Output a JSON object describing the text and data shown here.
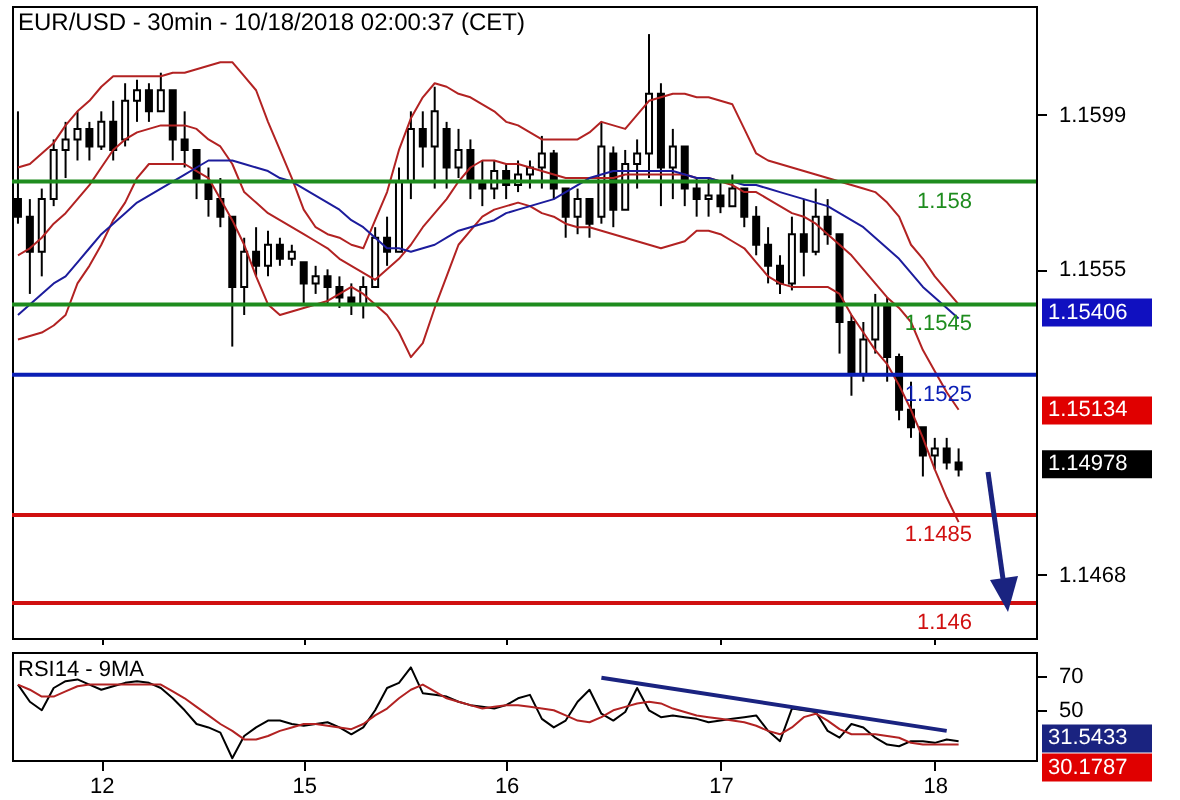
{
  "chart_data": [
    {
      "type": "candlestick",
      "title": "EUR/USD - 30min - 10/18/2018 02:00:37 (CET)",
      "categories": [
        null,
        null,
        null,
        null,
        null,
        null,
        null,
        "12",
        null,
        null,
        null,
        null,
        null,
        null,
        null,
        null,
        null,
        null,
        null,
        null,
        null,
        null,
        null,
        null,
        "15",
        null,
        null,
        null,
        null,
        null,
        null,
        null,
        null,
        null,
        null,
        null,
        null,
        null,
        null,
        null,
        null,
        "16",
        null,
        null,
        null,
        null,
        null,
        null,
        null,
        null,
        null,
        null,
        null,
        null,
        null,
        null,
        null,
        null,
        null,
        "17",
        null,
        null,
        null,
        null,
        null,
        null,
        null,
        null,
        null,
        null,
        null,
        null,
        null,
        null,
        null,
        null,
        null,
        "18",
        null,
        null,
        null,
        null,
        null,
        null,
        null,
        null
      ],
      "ohlc": [
        [
          1.1575,
          1.16,
          1.1568,
          1.157
        ],
        [
          1.157,
          1.1575,
          1.1548,
          1.156
        ],
        [
          1.156,
          1.1578,
          1.1553,
          1.1575
        ],
        [
          1.1575,
          1.1592,
          1.1573,
          1.1589
        ],
        [
          1.1589,
          1.1597,
          1.1581,
          1.1592
        ],
        [
          1.1592,
          1.16,
          1.1586,
          1.1595
        ],
        [
          1.1595,
          1.1597,
          1.1586,
          1.159
        ],
        [
          1.159,
          1.16,
          1.1589,
          1.1597
        ],
        [
          1.1597,
          1.1603,
          1.1586,
          1.1589
        ],
        [
          1.1592,
          1.1608,
          1.159,
          1.1603
        ],
        [
          1.1603,
          1.1609,
          1.1597,
          1.1606
        ],
        [
          1.1606,
          1.1608,
          1.1597,
          1.16
        ],
        [
          1.16,
          1.1611,
          1.16,
          1.1606
        ],
        [
          1.1606,
          1.1606,
          1.1586,
          1.1592
        ],
        [
          1.1592,
          1.16,
          1.1584,
          1.1589
        ],
        [
          1.1589,
          1.1589,
          1.1575,
          1.158
        ],
        [
          1.158,
          1.1584,
          1.157,
          1.1575
        ],
        [
          1.1575,
          1.1581,
          1.1567,
          1.157
        ],
        [
          1.157,
          1.157,
          1.1533,
          1.155
        ],
        [
          1.155,
          1.1564,
          1.1542,
          1.156
        ],
        [
          1.156,
          1.1567,
          1.1553,
          1.1556
        ],
        [
          1.1556,
          1.1566,
          1.1553,
          1.1562
        ],
        [
          1.1562,
          1.1564,
          1.1556,
          1.1558
        ],
        [
          1.1558,
          1.1562,
          1.1556,
          1.156
        ],
        [
          1.1557,
          1.1557,
          1.1545,
          1.1551
        ],
        [
          1.1551,
          1.1556,
          1.1548,
          1.1553
        ],
        [
          1.1553,
          1.1555,
          1.1545,
          1.155
        ],
        [
          1.155,
          1.1553,
          1.1544,
          1.1547
        ],
        [
          1.1547,
          1.1551,
          1.1542,
          1.1545
        ],
        [
          1.1545,
          1.1553,
          1.1541,
          1.155
        ],
        [
          1.155,
          1.1567,
          1.155,
          1.1564
        ],
        [
          1.1564,
          1.157,
          1.1556,
          1.156
        ],
        [
          1.156,
          1.1584,
          1.156,
          1.158
        ],
        [
          1.158,
          1.16,
          1.1575,
          1.1595
        ],
        [
          1.1595,
          1.16,
          1.1584,
          1.159
        ],
        [
          1.159,
          1.1607,
          1.1578,
          1.16
        ],
        [
          1.1595,
          1.1597,
          1.1578,
          1.1584
        ],
        [
          1.1584,
          1.1595,
          1.1581,
          1.1589
        ],
        [
          1.1589,
          1.1592,
          1.1575,
          1.158
        ],
        [
          1.158,
          1.1586,
          1.1573,
          1.1578
        ],
        [
          1.1578,
          1.1586,
          1.1575,
          1.1583
        ],
        [
          1.1583,
          1.1585,
          1.1575,
          1.1579
        ],
        [
          1.1579,
          1.1586,
          1.1577,
          1.1582
        ],
        [
          1.1582,
          1.1586,
          1.1578,
          1.1584
        ],
        [
          1.1584,
          1.1593,
          1.1578,
          1.1588
        ],
        [
          1.1588,
          1.1589,
          1.1575,
          1.1578
        ],
        [
          1.1578,
          1.1578,
          1.1564,
          1.157
        ],
        [
          1.157,
          1.1578,
          1.1565,
          1.1575
        ],
        [
          1.1575,
          1.1575,
          1.1564,
          1.1568
        ],
        [
          1.157,
          1.1597,
          1.1568,
          1.159
        ],
        [
          1.1588,
          1.159,
          1.1567,
          1.1572
        ],
        [
          1.1572,
          1.1589,
          1.1572,
          1.1585
        ],
        [
          1.1585,
          1.1592,
          1.1578,
          1.1588
        ],
        [
          1.1588,
          1.1622,
          1.1581,
          1.1605
        ],
        [
          1.1605,
          1.1608,
          1.1573,
          1.1584
        ],
        [
          1.1584,
          1.1595,
          1.1575,
          1.159
        ],
        [
          1.159,
          1.159,
          1.1573,
          1.1578
        ],
        [
          1.1578,
          1.1581,
          1.157,
          1.1575
        ],
        [
          1.1575,
          1.1581,
          1.157,
          1.1576
        ],
        [
          1.1576,
          1.158,
          1.1571,
          1.1573
        ],
        [
          1.1573,
          1.1582,
          1.1573,
          1.1578
        ],
        [
          1.1578,
          1.1578,
          1.1567,
          1.157
        ],
        [
          1.157,
          1.1573,
          1.1559,
          1.1562
        ],
        [
          1.1562,
          1.1567,
          1.1551,
          1.1556
        ],
        [
          1.1556,
          1.1559,
          1.1548,
          1.1551
        ],
        [
          1.1551,
          1.157,
          1.1549,
          1.1565
        ],
        [
          1.1565,
          1.1575,
          1.1553,
          1.156
        ],
        [
          1.156,
          1.1578,
          1.1559,
          1.157
        ],
        [
          1.157,
          1.1575,
          1.1562,
          1.1565
        ],
        [
          1.1565,
          1.1565,
          1.1531,
          1.154
        ],
        [
          1.154,
          1.1542,
          1.1519,
          1.1525
        ],
        [
          1.1525,
          1.154,
          1.1523,
          1.1535
        ],
        [
          1.1535,
          1.1548,
          1.1531,
          1.1545
        ],
        [
          1.1545,
          1.1547,
          1.1523,
          1.153
        ],
        [
          1.153,
          1.1531,
          1.1512,
          1.1515
        ],
        [
          1.1515,
          1.1523,
          1.1507,
          1.151
        ],
        [
          1.151,
          1.151,
          1.1496,
          1.1502
        ],
        [
          1.1502,
          1.1507,
          1.1498,
          1.1504
        ],
        [
          1.1504,
          1.1507,
          1.1498,
          1.15
        ],
        [
          1.15,
          1.1504,
          1.1496,
          1.1498
        ],
        null,
        null,
        null,
        null,
        null,
        null
      ],
      "series": [
        {
          "type": "line",
          "color": "#b22222",
          "values": [
            1.1584,
            1.1585,
            1.1588,
            1.1591,
            1.1596,
            1.16,
            1.1603,
            1.1607,
            1.161,
            1.161,
            1.161,
            1.161,
            1.161,
            1.1611,
            1.1611,
            1.1612,
            1.1613,
            1.1614,
            1.1614,
            1.161,
            1.1606,
            1.1597,
            1.1589,
            1.1581,
            1.1572,
            1.1567,
            1.1565,
            1.1564,
            1.1562,
            1.1561,
            1.1569,
            1.1577,
            1.1589,
            1.1598,
            1.1604,
            1.1608,
            1.1607,
            1.1605,
            1.1604,
            1.1602,
            1.16,
            1.1597,
            1.1596,
            1.1594,
            1.1592,
            1.1592,
            1.1592,
            1.1592,
            1.1594,
            1.1597,
            1.1596,
            1.1595,
            1.1599,
            1.1603,
            1.1604,
            1.1605,
            1.1605,
            1.1604,
            1.1604,
            1.1603,
            1.1602,
            1.1595,
            1.1588,
            1.1586,
            1.1585,
            1.1584,
            1.1583,
            1.1582,
            1.1581,
            1.158,
            1.1579,
            1.1578,
            1.1577,
            1.1574,
            1.157,
            1.1562,
            1.1558,
            1.1553,
            1.1549,
            1.1545,
            null,
            null,
            null,
            null,
            null,
            null
          ]
        },
        {
          "type": "line",
          "color": "#b22222",
          "values": [
            1.1559,
            1.1561,
            1.1564,
            1.1568,
            1.1571,
            1.1575,
            1.1579,
            1.1584,
            1.1589,
            1.1592,
            1.1594,
            1.1595,
            1.1596,
            1.1596,
            1.1596,
            1.1595,
            1.1592,
            1.159,
            1.1585,
            1.1577,
            1.1574,
            1.1571,
            1.1569,
            1.1567,
            1.1565,
            1.1563,
            1.1561,
            1.1558,
            1.1556,
            1.1554,
            1.1552,
            1.1555,
            1.1558,
            1.1562,
            1.1567,
            1.1571,
            1.1575,
            1.158,
            1.1584,
            1.1586,
            1.1586,
            1.1585,
            1.1585,
            1.1584,
            1.1583,
            1.1582,
            1.1581,
            1.1581,
            1.1581,
            1.1581,
            1.1581,
            1.1582,
            1.1582,
            1.1582,
            1.1582,
            1.1582,
            1.1582,
            1.1581,
            1.1581,
            1.158,
            1.1579,
            1.1577,
            1.1577,
            1.1575,
            1.1573,
            1.1571,
            1.157,
            1.1568,
            1.1565,
            1.1562,
            1.1559,
            1.1555,
            1.1551,
            1.1547,
            1.1544,
            1.154,
            1.1532,
            1.1526,
            1.152,
            1.1515,
            null,
            null,
            null,
            null,
            null,
            null
          ]
        },
        {
          "type": "line",
          "color": "#b22222",
          "values": [
            1.1535,
            1.1536,
            1.1537,
            1.1539,
            1.1542,
            1.1551,
            1.1556,
            1.1562,
            1.1569,
            1.1574,
            1.1581,
            1.1585,
            1.1585,
            1.1585,
            1.1585,
            1.1583,
            1.1581,
            1.1575,
            1.1569,
            1.1562,
            1.1553,
            1.1545,
            1.1542,
            1.1543,
            1.1544,
            1.1545,
            1.1546,
            1.1548,
            1.155,
            1.1548,
            1.1545,
            1.1542,
            1.1537,
            1.153,
            1.1534,
            1.1544,
            1.1553,
            1.1562,
            1.1566,
            1.157,
            1.1572,
            1.1573,
            1.1574,
            1.1573,
            1.1571,
            1.157,
            1.1568,
            1.1567,
            1.1567,
            1.1566,
            1.1565,
            1.1564,
            1.1563,
            1.1562,
            1.1561,
            1.1562,
            1.1563,
            1.1566,
            1.1566,
            1.1565,
            1.1563,
            1.1561,
            1.1557,
            1.1553,
            1.1551,
            1.155,
            1.155,
            1.155,
            1.155,
            1.1548,
            1.1542,
            1.1537,
            1.1532,
            1.1528,
            1.1522,
            1.1515,
            1.1507,
            1.1498,
            1.149,
            1.1483,
            null,
            null,
            null,
            null,
            null,
            null
          ]
        },
        {
          "type": "line",
          "color": "#1c1c9c",
          "values": [
            1.1542,
            1.1545,
            1.1548,
            1.1551,
            1.1553,
            1.1557,
            1.1561,
            1.1565,
            1.1568,
            1.1571,
            1.1574,
            1.1576,
            1.1578,
            1.158,
            1.1582,
            1.1584,
            1.1586,
            1.1586,
            1.1586,
            1.1585,
            1.1584,
            1.1583,
            1.1581,
            1.158,
            1.1578,
            1.1576,
            1.1574,
            1.1572,
            1.1569,
            1.1567,
            1.1564,
            1.1561,
            1.1561,
            1.156,
            1.1561,
            1.1562,
            1.1564,
            1.1566,
            1.1567,
            1.1568,
            1.1569,
            1.1571,
            1.1572,
            1.1573,
            1.1574,
            1.1575,
            1.1577,
            1.1579,
            1.1581,
            1.1582,
            1.1583,
            1.1583,
            1.1583,
            1.1583,
            1.1583,
            1.1583,
            1.1582,
            1.1581,
            1.1581,
            1.158,
            1.158,
            1.1579,
            1.1579,
            1.1578,
            1.1577,
            1.1576,
            1.1575,
            1.1574,
            1.1573,
            1.1571,
            1.1569,
            1.1567,
            1.1564,
            1.1561,
            1.1558,
            1.1554,
            1.155,
            1.1547,
            1.1544,
            1.1541,
            null,
            null,
            null,
            null,
            null,
            null
          ]
        }
      ],
      "ylim": [
        1.145,
        1.163
      ],
      "yticks": [
        1.1599,
        1.1555,
        1.1468
      ],
      "tick_labels": "y",
      "ref_lines": [
        {
          "axis": "y",
          "value": 1.158,
          "label": "1.158",
          "color": "#1e8c1e"
        },
        {
          "axis": "y",
          "value": 1.1545,
          "label": "1.1545",
          "color": "#1e8c1e"
        },
        {
          "axis": "y",
          "value": 1.1525,
          "label": "1.1525",
          "color": "#0b1fb5"
        },
        {
          "axis": "y",
          "value": 1.1485,
          "label": "1.1485",
          "color": "#d01010"
        },
        {
          "axis": "y",
          "value": 1.146,
          "label": "1.146",
          "color": "#d01010"
        }
      ],
      "annotations": [
        "1.15406",
        "1.15134",
        "1.14978"
      ]
    },
    {
      "type": "line",
      "title": "RSI14 - 9MA",
      "categories": [
        null,
        null,
        null,
        null,
        null,
        null,
        null,
        "12",
        null,
        null,
        null,
        null,
        null,
        null,
        null,
        null,
        null,
        null,
        null,
        null,
        null,
        null,
        null,
        null,
        "15",
        null,
        null,
        null,
        null,
        null,
        null,
        null,
        null,
        null,
        null,
        null,
        null,
        null,
        null,
        null,
        null,
        "16",
        null,
        null,
        null,
        null,
        null,
        null,
        null,
        null,
        null,
        null,
        null,
        null,
        null,
        null,
        null,
        null,
        null,
        "17",
        null,
        null,
        null,
        null,
        null,
        null,
        null,
        null,
        null,
        null,
        null,
        null,
        null,
        null,
        null,
        null,
        null,
        "18",
        null,
        null,
        null,
        null,
        null,
        null,
        null,
        null
      ],
      "series": [
        {
          "color": "#000000",
          "values": [
            65,
            55,
            50,
            63,
            67,
            68,
            65,
            62,
            64,
            66,
            67,
            66,
            63,
            57,
            50,
            42,
            40,
            37,
            22,
            35,
            40,
            44,
            44,
            42,
            41,
            42,
            43,
            40,
            36,
            40,
            50,
            63,
            66,
            75,
            60,
            59,
            58,
            55,
            53,
            52,
            51,
            53,
            57,
            59,
            45,
            40,
            44,
            55,
            62,
            48,
            44,
            49,
            63,
            50,
            46,
            47,
            46,
            45,
            43,
            44,
            45,
            46,
            47,
            38,
            32,
            51,
            50,
            49,
            38,
            34,
            42,
            40,
            34,
            30,
            29,
            32,
            32,
            31,
            33,
            32,
            null,
            null,
            null,
            null,
            null,
            null
          ]
        },
        {
          "color": "#b22222",
          "values": [
            65,
            62,
            58,
            58,
            61,
            64,
            65,
            65,
            65,
            65,
            65,
            65,
            65,
            61,
            57,
            52,
            47,
            42,
            38,
            33,
            33,
            35,
            38,
            40,
            42,
            42,
            41,
            40,
            39,
            42,
            47,
            51,
            57,
            62,
            65,
            61,
            57,
            55,
            53,
            51,
            52,
            53,
            53,
            52,
            51,
            50,
            47,
            44,
            43,
            46,
            50,
            52,
            54,
            55,
            54,
            51,
            49,
            47,
            46,
            45,
            44,
            43,
            41,
            38,
            36,
            40,
            46,
            48,
            44,
            39,
            36,
            36,
            36,
            35,
            34,
            31,
            30,
            30,
            30,
            30,
            null,
            null,
            null,
            null,
            null,
            null
          ]
        },
        {
          "color": "#1a2380",
          "values": [
            null,
            null,
            null,
            null,
            null,
            null,
            null,
            null,
            null,
            null,
            null,
            null,
            null,
            null,
            null,
            null,
            null,
            null,
            null,
            null,
            null,
            null,
            null,
            null,
            null,
            null,
            null,
            null,
            null,
            null,
            null,
            null,
            null,
            null,
            null,
            null,
            null,
            null,
            null,
            null,
            null,
            null,
            null,
            null,
            null,
            null,
            null,
            null,
            null,
            69,
            null,
            null,
            null,
            null,
            null,
            null,
            null,
            null,
            null,
            null,
            null,
            null,
            null,
            null,
            null,
            null,
            null,
            null,
            null,
            null,
            null,
            null,
            null,
            null,
            null,
            null,
            null,
            null,
            38,
            null,
            null,
            null,
            null,
            null,
            null,
            null
          ]
        }
      ],
      "ylim": [
        21,
        84
      ],
      "yticks": [
        50,
        70
      ],
      "annotations": [
        "31.5433",
        "30.1787"
      ]
    }
  ]
}
